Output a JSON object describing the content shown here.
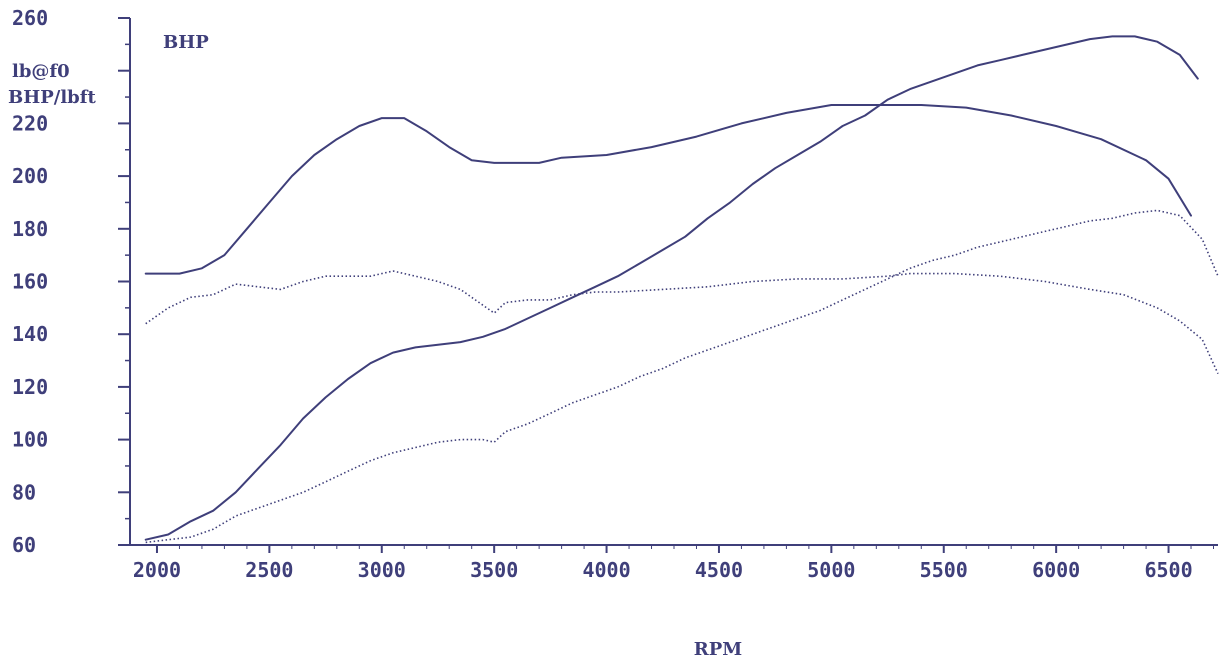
{
  "chart_data": {
    "type": "line",
    "title": "",
    "top_label": "BHP",
    "ylabel_line1": "lb@f0",
    "ylabel_line2": "BHP/lbft",
    "xlabel": "RPM",
    "xlim": [
      1880,
      6720
    ],
    "ylim": [
      60,
      260
    ],
    "x_ticks": [
      2000,
      2500,
      3000,
      3500,
      4000,
      4500,
      5000,
      5500,
      6000,
      6500
    ],
    "y_ticks": [
      60,
      80,
      100,
      120,
      140,
      160,
      180,
      200,
      220,
      240,
      260
    ],
    "x_tick_labels": [
      "2000",
      "2500",
      "3000",
      "3500",
      "4000",
      "4500",
      "5000",
      "5500",
      "6000",
      "6500"
    ],
    "y_tick_labels": [
      "60",
      "80",
      "100",
      "120",
      "140",
      "160",
      "180",
      "200",
      "220",
      "lb@f0",
      "260"
    ],
    "grid": false,
    "colors": {
      "line": "#3f3f7a",
      "axis": "#3f3f7a",
      "text": "#3f3f7a",
      "background": "#ffffff"
    },
    "series": [
      {
        "style": "solid",
        "x": [
          1950,
          2100,
          2200,
          2300,
          2400,
          2500,
          2600,
          2700,
          2800,
          2900,
          3000,
          3100,
          3200,
          3300,
          3400,
          3500,
          3600,
          3700,
          3800,
          4000,
          4200,
          4400,
          4600,
          4800,
          5000,
          5200,
          5400,
          5600,
          5800,
          6000,
          6200,
          6400,
          6500,
          6600
        ],
        "y": [
          163,
          163,
          165,
          170,
          180,
          190,
          200,
          208,
          214,
          219,
          222,
          222,
          217,
          211,
          206,
          205,
          205,
          205,
          207,
          208,
          211,
          215,
          220,
          224,
          227,
          227,
          227,
          226,
          223,
          219,
          214,
          206,
          199,
          185
        ]
      },
      {
        "style": "solid",
        "x": [
          1950,
          2050,
          2150,
          2250,
          2350,
          2450,
          2550,
          2650,
          2750,
          2850,
          2950,
          3050,
          3150,
          3250,
          3350,
          3450,
          3550,
          3650,
          3750,
          3850,
          3950,
          4050,
          4150,
          4250,
          4350,
          4450,
          4550,
          4650,
          4750,
          4850,
          4950,
          5050,
          5150,
          5250,
          5350,
          5450,
          5550,
          5650,
          5750,
          5850,
          5950,
          6050,
          6150,
          6250,
          6350,
          6450,
          6550,
          6630
        ],
        "y": [
          62,
          64,
          69,
          73,
          80,
          89,
          98,
          108,
          116,
          123,
          129,
          133,
          135,
          136,
          137,
          139,
          142,
          146,
          150,
          154,
          158,
          162,
          167,
          172,
          177,
          184,
          190,
          197,
          203,
          208,
          213,
          219,
          223,
          229,
          233,
          236,
          239,
          242,
          244,
          246,
          248,
          250,
          252,
          253,
          253,
          251,
          246,
          237
        ]
      },
      {
        "style": "dotted",
        "x": [
          1950,
          2050,
          2150,
          2250,
          2350,
          2450,
          2550,
          2650,
          2750,
          2850,
          2950,
          3050,
          3150,
          3250,
          3350,
          3450,
          3500,
          3550,
          3650,
          3750,
          3850,
          3950,
          4050,
          4250,
          4450,
          4650,
          4850,
          5050,
          5250,
          5350,
          5550,
          5750,
          5950,
          6150,
          6300,
          6450,
          6550,
          6650,
          6720
        ],
        "y": [
          144,
          150,
          154,
          155,
          159,
          158,
          157,
          160,
          162,
          162,
          162,
          164,
          162,
          160,
          157,
          151,
          148,
          152,
          153,
          153,
          155,
          156,
          156,
          157,
          158,
          160,
          161,
          161,
          162,
          163,
          163,
          162,
          160,
          157,
          155,
          150,
          145,
          138,
          125
        ]
      },
      {
        "style": "dotted",
        "x": [
          1950,
          2050,
          2150,
          2250,
          2350,
          2450,
          2550,
          2650,
          2750,
          2850,
          2950,
          3050,
          3150,
          3250,
          3350,
          3450,
          3500,
          3550,
          3650,
          3750,
          3850,
          3950,
          4050,
          4150,
          4250,
          4350,
          4450,
          4550,
          4650,
          4750,
          4850,
          4950,
          5050,
          5150,
          5250,
          5350,
          5450,
          5550,
          5650,
          5750,
          5850,
          5950,
          6050,
          6150,
          6250,
          6350,
          6450,
          6550,
          6650,
          6720
        ],
        "y": [
          61,
          62,
          63,
          66,
          71,
          74,
          77,
          80,
          84,
          88,
          92,
          95,
          97,
          99,
          100,
          100,
          99,
          103,
          106,
          110,
          114,
          117,
          120,
          124,
          127,
          131,
          134,
          137,
          140,
          143,
          146,
          149,
          153,
          157,
          161,
          165,
          168,
          170,
          173,
          175,
          177,
          179,
          181,
          183,
          184,
          186,
          187,
          185,
          176,
          162
        ]
      }
    ]
  }
}
